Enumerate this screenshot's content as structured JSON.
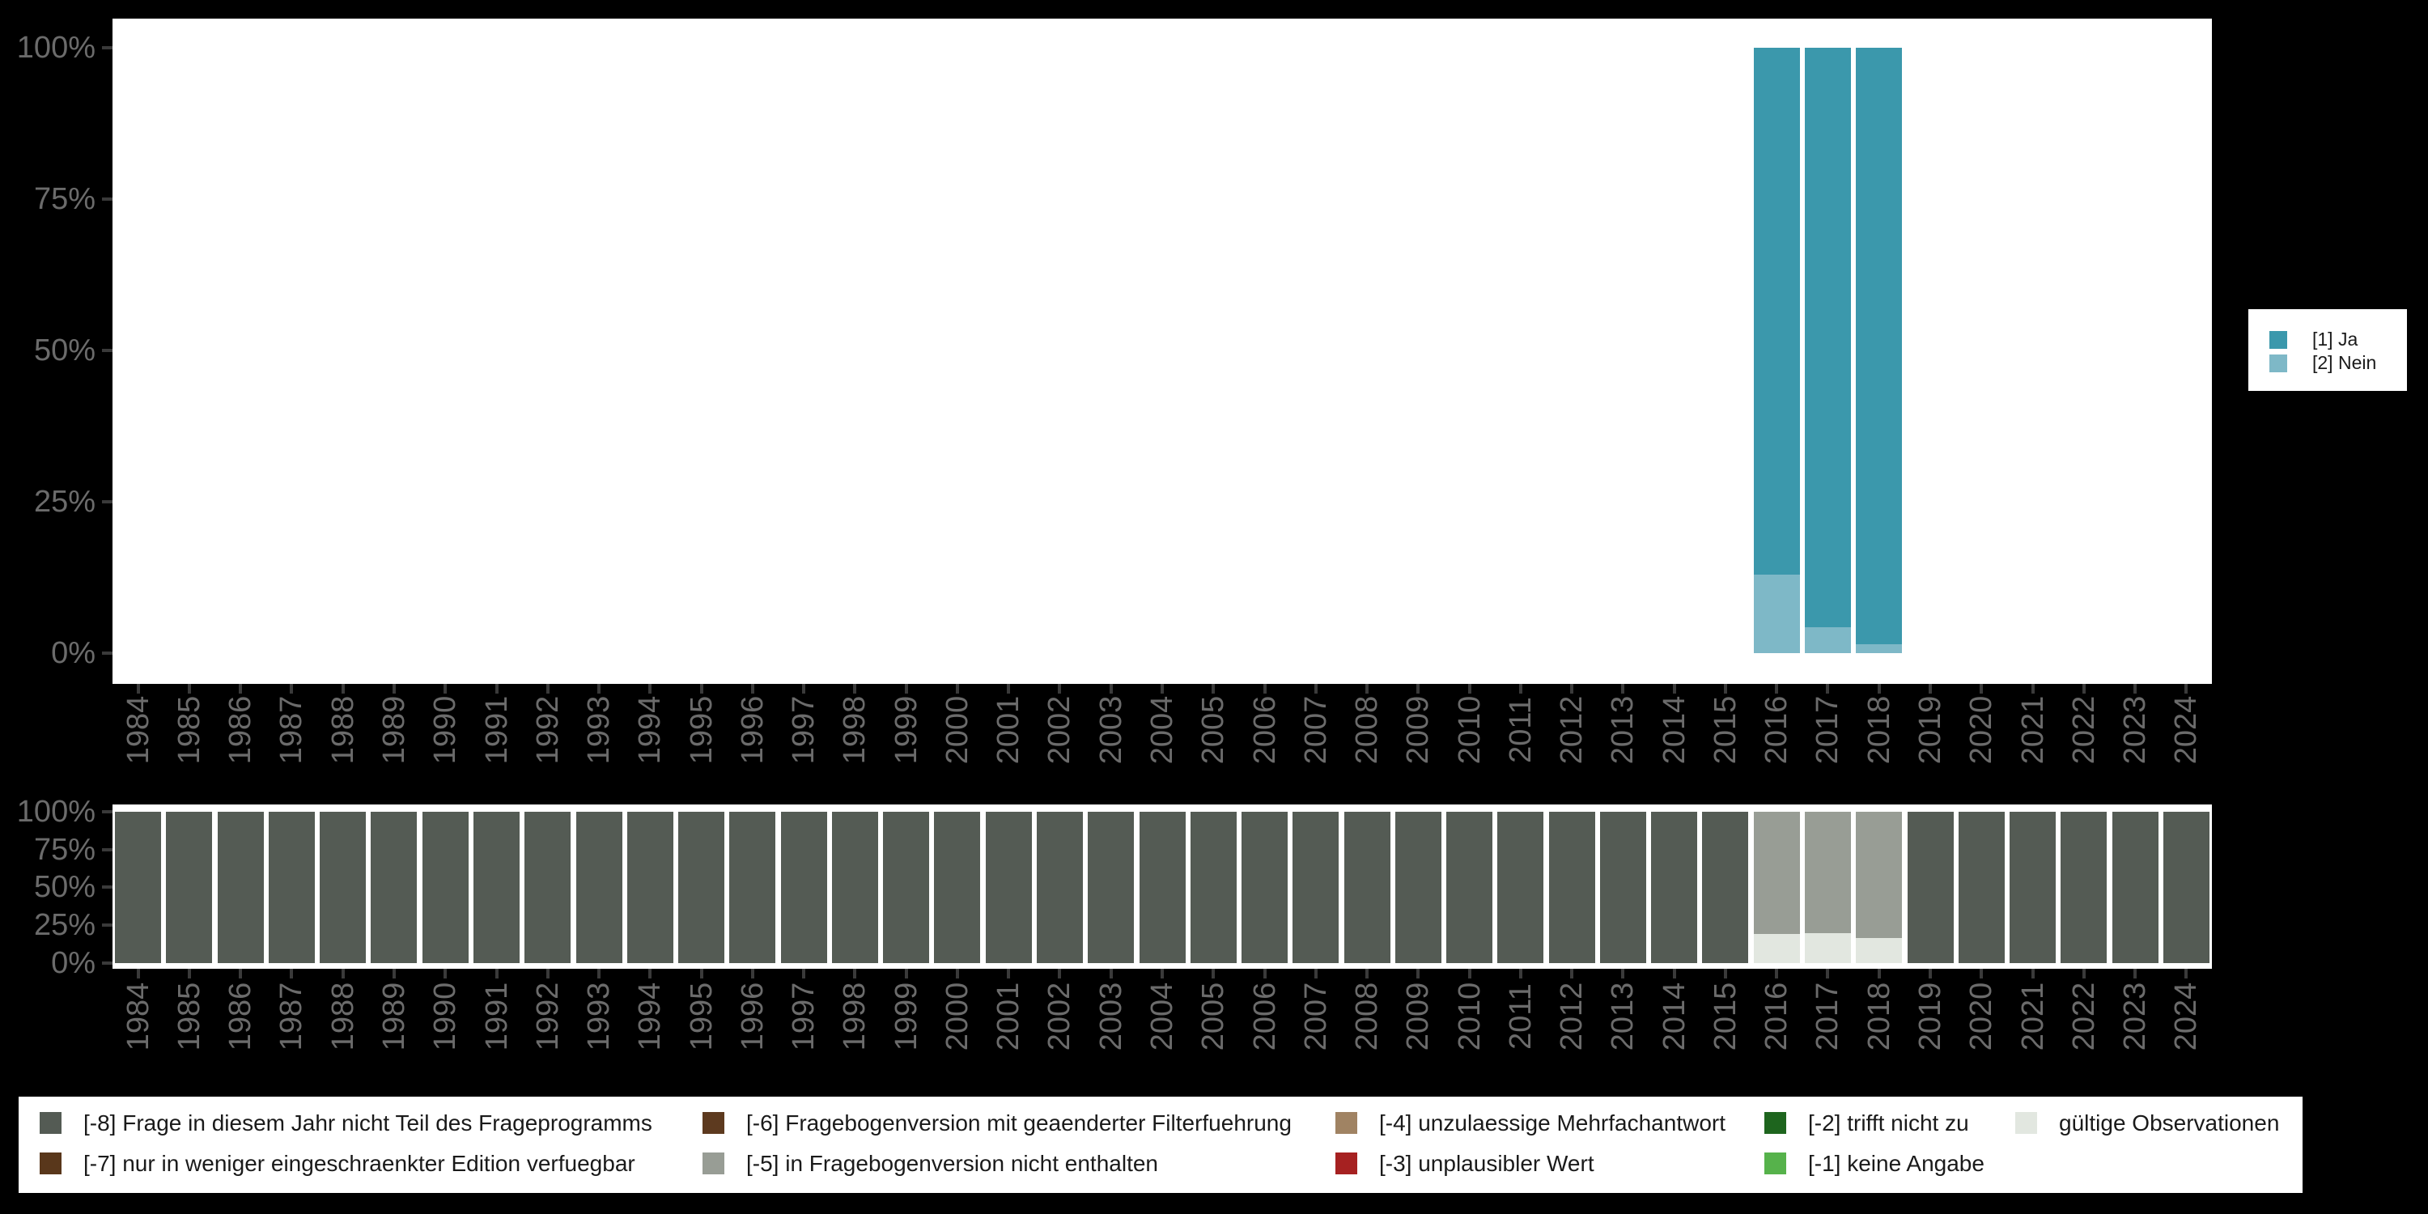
{
  "palette": {
    "ja": "#3B98AC",
    "nein": "#7EB8C7",
    "m8": "#545B54",
    "m7": "#59371B",
    "m6": "#5D3A1F",
    "m5": "#989D95",
    "m4": "#A08363",
    "m3": "#A62121",
    "m2": "#1E651E",
    "m1": "#56B24B",
    "valid": "#E2E7E0",
    "background": "#000000",
    "panel": "#FFFFFF",
    "axis_text": "#6B6B6B",
    "tick": "#3A3A3A",
    "legend_text": "#1A1A1A"
  },
  "chart_data": [
    {
      "id": "values",
      "type": "bar",
      "stacked": true,
      "units": "percent",
      "title": "",
      "grid": false,
      "legend_position": "right",
      "ylim": [
        0,
        100
      ],
      "y_tick_labels": [
        "100%",
        "75%",
        "50%",
        "25%",
        "0%"
      ],
      "categories": [
        "1984",
        "1985",
        "1986",
        "1987",
        "1988",
        "1989",
        "1990",
        "1991",
        "1992",
        "1993",
        "1994",
        "1995",
        "1996",
        "1997",
        "1998",
        "1999",
        "2000",
        "2001",
        "2002",
        "2003",
        "2004",
        "2005",
        "2006",
        "2007",
        "2008",
        "2009",
        "2010",
        "2011",
        "2012",
        "2013",
        "2014",
        "2015",
        "2016",
        "2017",
        "2018",
        "2019",
        "2020",
        "2021",
        "2022",
        "2023",
        "2024"
      ],
      "series": [
        {
          "name": "[1] Ja",
          "color_key": "ja",
          "values": [
            null,
            null,
            null,
            null,
            null,
            null,
            null,
            null,
            null,
            null,
            null,
            null,
            null,
            null,
            null,
            null,
            null,
            null,
            null,
            null,
            null,
            null,
            null,
            null,
            null,
            null,
            null,
            null,
            null,
            null,
            null,
            null,
            87,
            95.7,
            98.5,
            null,
            null,
            null,
            null,
            null,
            null
          ]
        },
        {
          "name": "[2] Nein",
          "color_key": "nein",
          "values": [
            null,
            null,
            null,
            null,
            null,
            null,
            null,
            null,
            null,
            null,
            null,
            null,
            null,
            null,
            null,
            null,
            null,
            null,
            null,
            null,
            null,
            null,
            null,
            null,
            null,
            null,
            null,
            null,
            null,
            null,
            null,
            null,
            13,
            4.3,
            1.5,
            null,
            null,
            null,
            null,
            null,
            null
          ]
        }
      ]
    },
    {
      "id": "missings",
      "type": "bar",
      "stacked": true,
      "units": "percent",
      "title": "",
      "grid": false,
      "legend_position": "bottom",
      "ylim": [
        0,
        100
      ],
      "y_tick_labels": [
        "100%",
        "75%",
        "50%",
        "25%",
        "0%"
      ],
      "categories": [
        "1984",
        "1985",
        "1986",
        "1987",
        "1988",
        "1989",
        "1990",
        "1991",
        "1992",
        "1993",
        "1994",
        "1995",
        "1996",
        "1997",
        "1998",
        "1999",
        "2000",
        "2001",
        "2002",
        "2003",
        "2004",
        "2005",
        "2006",
        "2007",
        "2008",
        "2009",
        "2010",
        "2011",
        "2012",
        "2013",
        "2014",
        "2015",
        "2016",
        "2017",
        "2018",
        "2019",
        "2020",
        "2021",
        "2022",
        "2023",
        "2024"
      ],
      "series": [
        {
          "name": "[-8] Frage in diesem Jahr nicht Teil des Frageprogramms",
          "color_key": "m8",
          "values": [
            100,
            100,
            100,
            100,
            100,
            100,
            100,
            100,
            100,
            100,
            100,
            100,
            100,
            100,
            100,
            100,
            100,
            100,
            100,
            100,
            100,
            100,
            100,
            100,
            100,
            100,
            100,
            100,
            100,
            100,
            100,
            100,
            null,
            null,
            null,
            100,
            100,
            100,
            100,
            100,
            100
          ]
        },
        {
          "name": "[-5] in Fragebogenversion nicht enthalten",
          "color_key": "m5",
          "values": [
            null,
            null,
            null,
            null,
            null,
            null,
            null,
            null,
            null,
            null,
            null,
            null,
            null,
            null,
            null,
            null,
            null,
            null,
            null,
            null,
            null,
            null,
            null,
            null,
            null,
            null,
            null,
            null,
            null,
            null,
            null,
            null,
            81,
            80,
            83.5,
            null,
            null,
            null,
            null,
            null,
            null
          ]
        },
        {
          "name": "gültige Observationen",
          "color_key": "valid",
          "values": [
            null,
            null,
            null,
            null,
            null,
            null,
            null,
            null,
            null,
            null,
            null,
            null,
            null,
            null,
            null,
            null,
            null,
            null,
            null,
            null,
            null,
            null,
            null,
            null,
            null,
            null,
            null,
            null,
            null,
            null,
            null,
            null,
            19,
            20,
            16.5,
            null,
            null,
            null,
            null,
            null,
            null
          ]
        }
      ]
    }
  ],
  "top_legend": {
    "items": [
      {
        "label": "[1] Ja",
        "color_key": "ja"
      },
      {
        "label": "[2] Nein",
        "color_key": "nein"
      }
    ]
  },
  "bottom_legend": {
    "columns": [
      [
        {
          "label": "[-8] Frage in diesem Jahr nicht Teil des Frageprogramms",
          "color_key": "m8"
        },
        {
          "label": "[-7] nur in weniger eingeschraenkter Edition verfuegbar",
          "color_key": "m7"
        }
      ],
      [
        {
          "label": "[-6] Fragebogenversion mit geaenderter Filterfuehrung",
          "color_key": "m6"
        },
        {
          "label": "[-5] in Fragebogenversion nicht enthalten",
          "color_key": "m5"
        }
      ],
      [
        {
          "label": "[-4] unzulaessige Mehrfachantwort",
          "color_key": "m4"
        },
        {
          "label": "[-3] unplausibler Wert",
          "color_key": "m3"
        }
      ],
      [
        {
          "label": "[-2] trifft nicht zu",
          "color_key": "m2"
        },
        {
          "label": "[-1] keine Angabe",
          "color_key": "m1"
        }
      ],
      [
        {
          "label": "gültige Observationen",
          "color_key": "valid"
        }
      ]
    ]
  }
}
